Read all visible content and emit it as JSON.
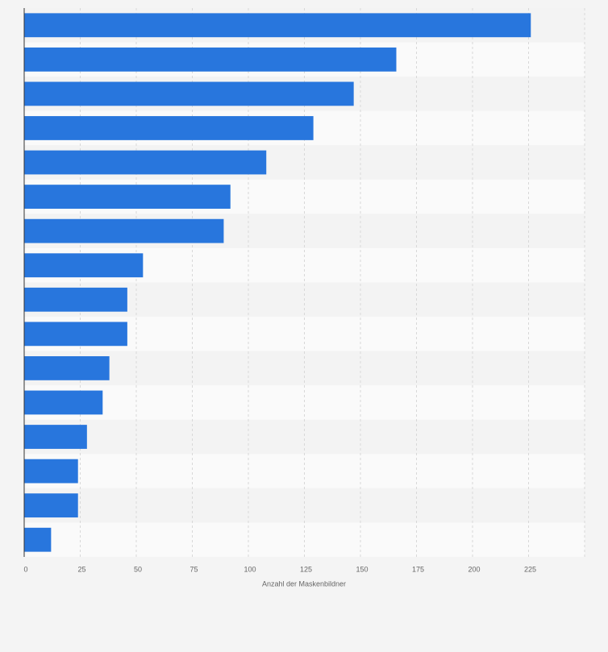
{
  "chart_data": {
    "type": "bar",
    "orientation": "horizontal",
    "x_label": "Anzahl der Maskenbildner",
    "categories": [
      null,
      null,
      null,
      null,
      null,
      null,
      null,
      null,
      null,
      null,
      null,
      null,
      null,
      null,
      null,
      null
    ],
    "values": [
      226,
      166,
      147,
      129,
      108,
      92,
      89,
      53,
      46,
      46,
      38,
      35,
      28,
      24,
      24,
      12
    ],
    "color": "#2876dd",
    "xlim": [
      0,
      250
    ],
    "xticks": [
      0,
      25,
      50,
      75,
      100,
      125,
      150,
      175,
      200,
      225
    ],
    "grid": true
  }
}
